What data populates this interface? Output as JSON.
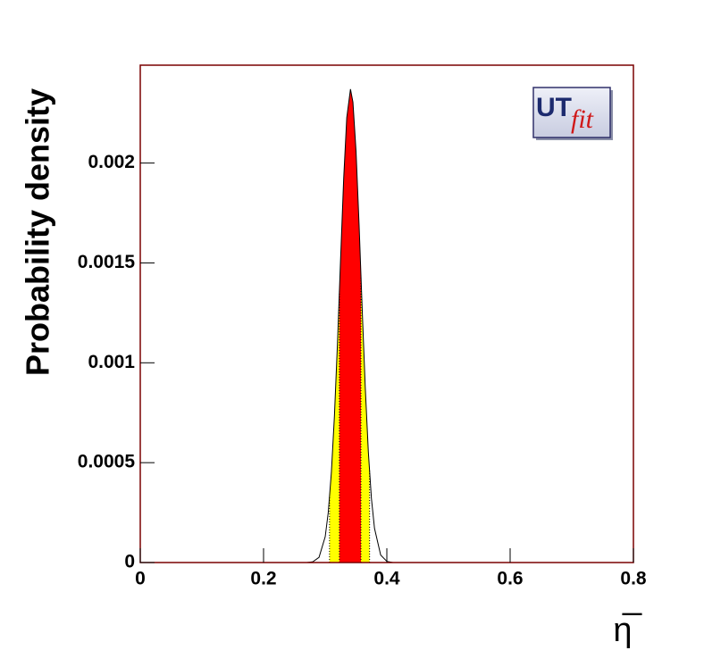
{
  "chart_data": {
    "type": "density",
    "y_label": "Probability density",
    "x_label": "η̅",
    "logo": {
      "main": "UT",
      "sub": "fit"
    },
    "x": [
      0.27,
      0.28,
      0.29,
      0.3,
      0.305,
      0.31,
      0.315,
      0.32,
      0.325,
      0.33,
      0.335,
      0.341,
      0.345,
      0.35,
      0.355,
      0.36,
      0.365,
      0.37,
      0.375,
      0.38,
      0.39,
      0.4,
      0.41
    ],
    "values": [
      0,
      4e-06,
      2.6e-05,
      0.000129,
      0.000252,
      0.00045,
      0.000735,
      0.001105,
      0.001522,
      0.001923,
      0.002227,
      0.00237,
      0.002305,
      0.00206,
      0.001689,
      0.001269,
      0.000875,
      0.000553,
      0.00032,
      0.000171,
      3.74e-05,
      5.8e-06,
      0
    ],
    "line_color": "#000000",
    "intervals": [
      {
        "color": "#ffff00",
        "range": [
          0.307,
          0.372
        ]
      },
      {
        "color": "#ff0000",
        "range": [
          0.323,
          0.358
        ]
      }
    ],
    "frame_color": "#7a0000",
    "xlim": [
      0,
      0.8
    ],
    "xticks": [
      0,
      0.2,
      0.4,
      0.6,
      0.8
    ],
    "ylim": [
      0,
      0.00249
    ],
    "yticks": [
      0,
      0.0005,
      0.001,
      0.0015,
      0.002
    ]
  }
}
